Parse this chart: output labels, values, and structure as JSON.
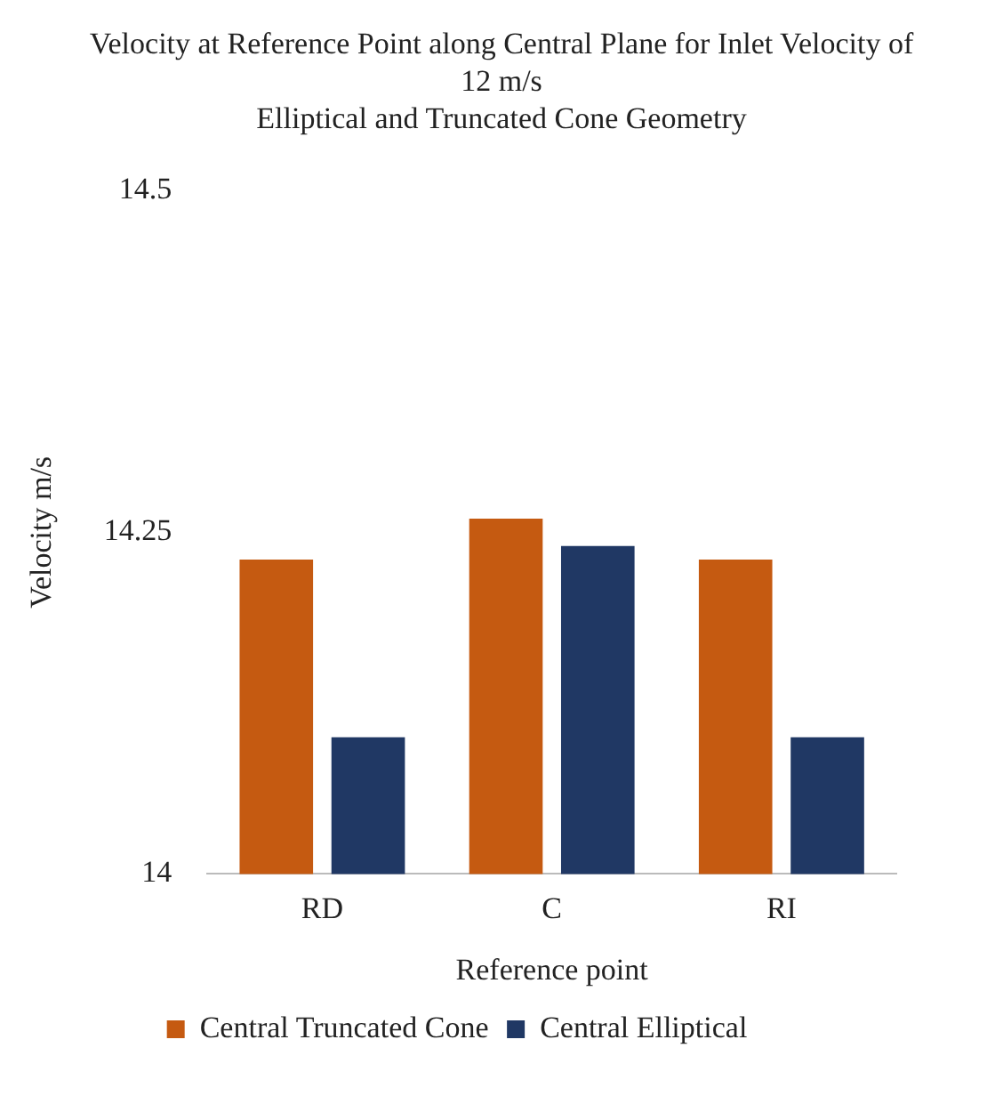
{
  "chart_data": {
    "type": "bar",
    "title": "Velocity at Reference Point along Central Plane for Inlet Velocity of 12 m/s",
    "subtitle": "Elliptical and Truncated Cone Geometry",
    "xlabel": "Reference point",
    "ylabel": "Velocity m/s",
    "categories": [
      "RD",
      "C",
      "RI"
    ],
    "series": [
      {
        "name": "Central Truncated Cone",
        "color": "#c55a11",
        "values": [
          14.23,
          14.26,
          14.23
        ]
      },
      {
        "name": "Central Elliptical",
        "color": "#203864",
        "values": [
          14.1,
          14.24,
          14.1
        ]
      }
    ],
    "ylim": [
      14,
      14.5
    ],
    "yticks": [
      14,
      14.25,
      14.5
    ],
    "grid": false,
    "legend": "bottom"
  }
}
